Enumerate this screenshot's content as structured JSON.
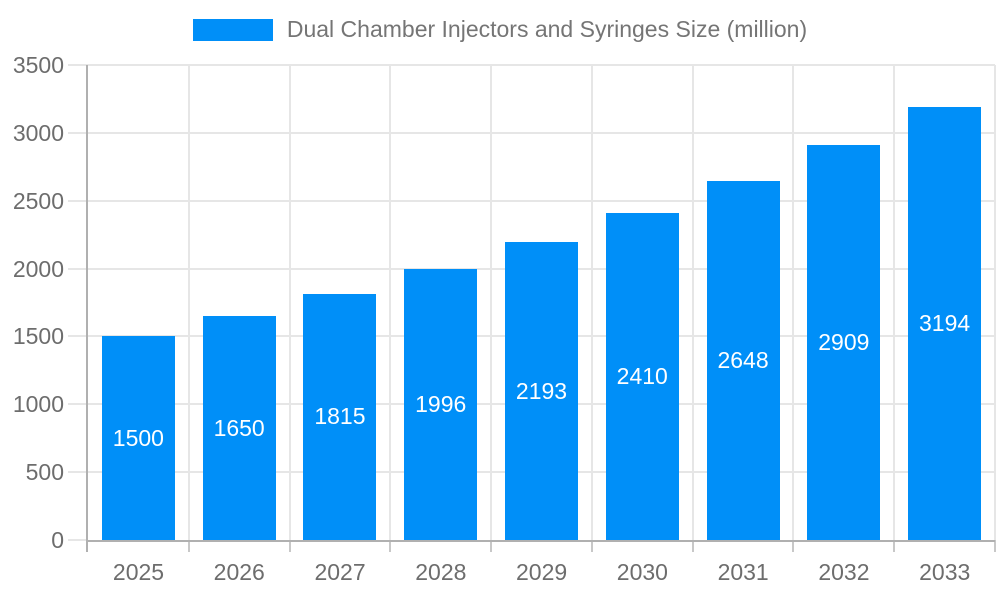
{
  "legend": {
    "label": "Dual Chamber Injectors and Syringes Size (million)"
  },
  "chart_data": {
    "type": "bar",
    "title": "Dual Chamber Injectors and Syringes Size (million)",
    "categories": [
      "2025",
      "2026",
      "2027",
      "2028",
      "2029",
      "2030",
      "2031",
      "2032",
      "2033"
    ],
    "values": [
      1500,
      1650,
      1815,
      1996,
      2193,
      2410,
      2648,
      2909,
      3194
    ],
    "series": [
      {
        "name": "Dual Chamber Injectors and Syringes Size (million)",
        "values": [
          1500,
          1650,
          1815,
          1996,
          2193,
          2410,
          2648,
          2909,
          3194
        ]
      }
    ],
    "xlabel": "",
    "ylabel": "",
    "ylim": [
      0,
      3500
    ],
    "yticks": [
      0,
      500,
      1000,
      1500,
      2000,
      2500,
      3000,
      3500
    ],
    "grid": true,
    "legend_position": "top-center",
    "value_labels_position": "inside-center"
  },
  "colors": {
    "bar": "#008FF8",
    "grid": "#e6e6e6",
    "axis": "#b0b0b0",
    "tick_label": "#6d6d6d",
    "legend_text": "#757575",
    "value_label": "#ffffff",
    "background": "#ffffff"
  }
}
